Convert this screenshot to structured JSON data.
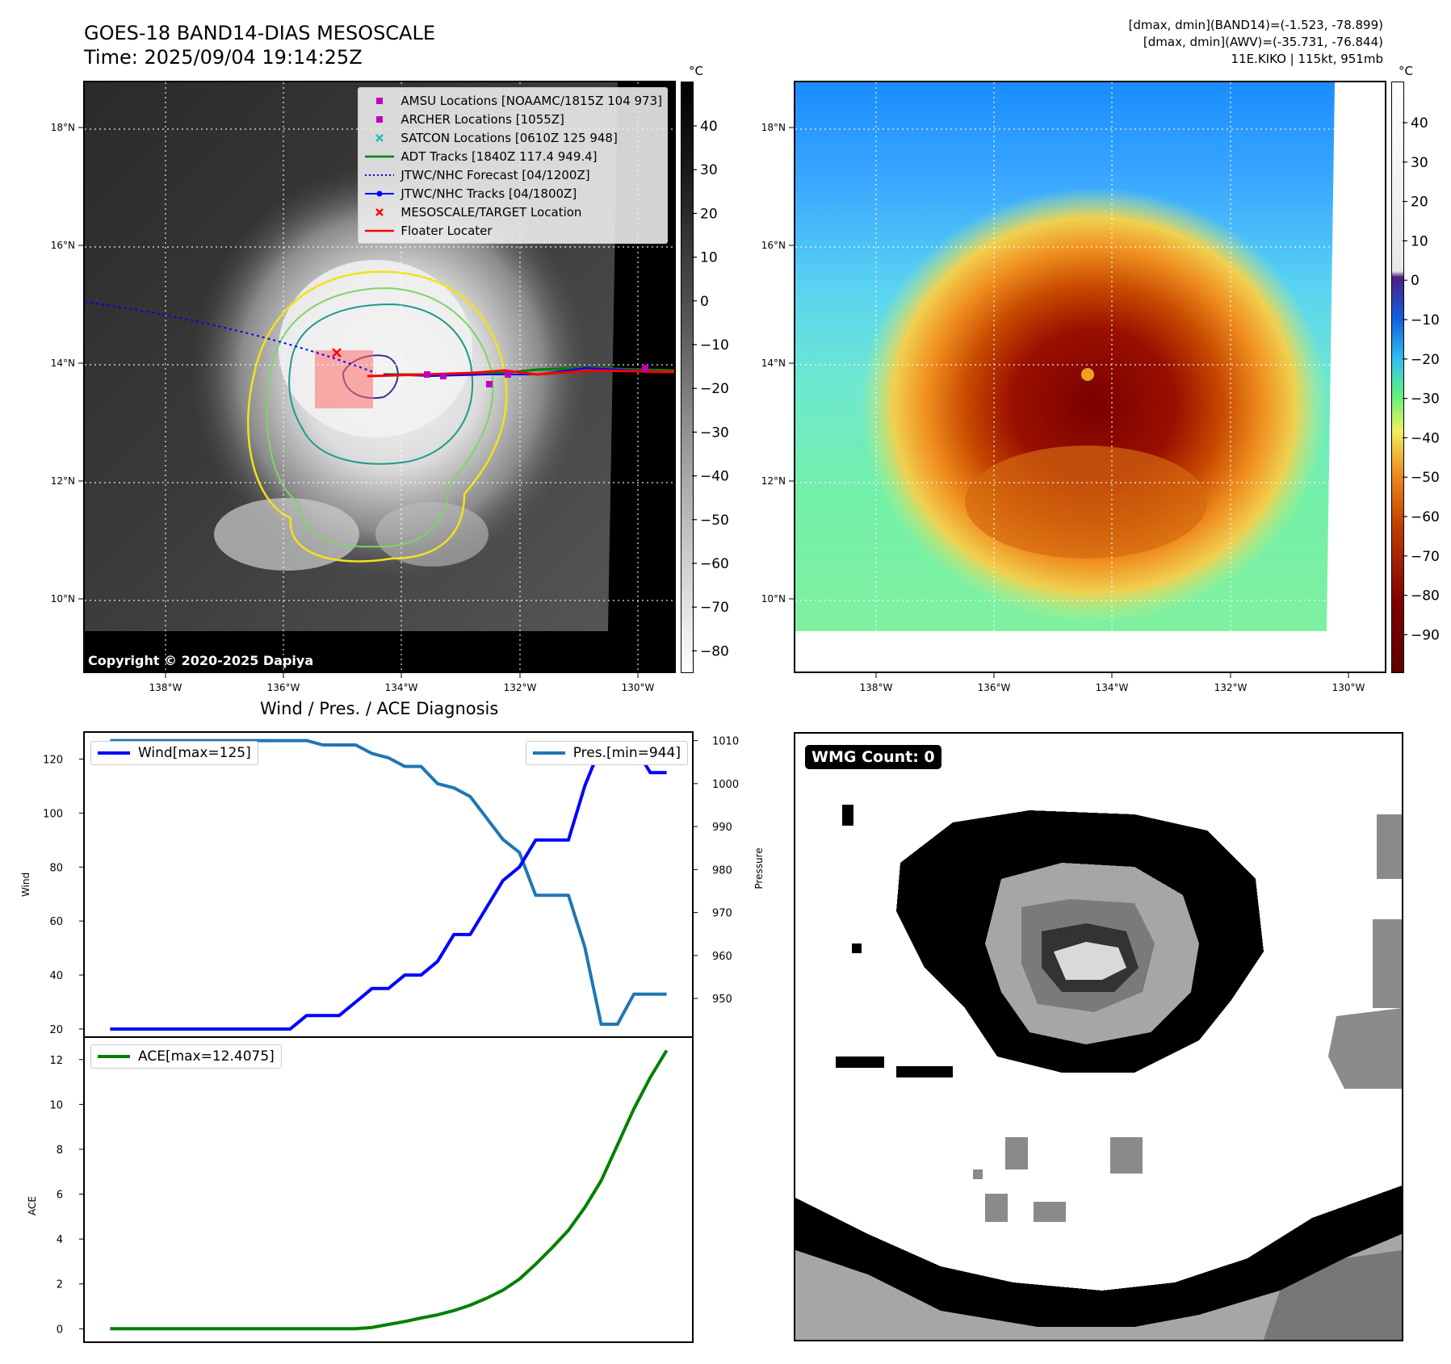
{
  "header": {
    "title_line1": "GOES-18 BAND14-DIAS MESOSCALE",
    "title_line2": "Time: 2025/09/04 19:14:25Z",
    "stats_line1": "[dmax, dmin](BAND14)=(-1.523, -78.899)",
    "stats_line2": "[dmax, dmin](AWV)=(-35.731, -76.844)",
    "stats_line3": "11E.KIKO | 115kt, 951mb"
  },
  "colors": {
    "wind": "#0000ff",
    "pressure": "#1f77b4",
    "ace": "#008000",
    "track_red": "#ff0000",
    "forecast_blue": "#0000ff",
    "contour_yellow": "#f2e21a",
    "contour_green": "#7ed36a",
    "contour_teal": "#1f9a8a",
    "contour_navy": "#3b2f8f"
  },
  "map": {
    "unit_label": "°C",
    "copyright": "Copyright © 2020-2025 Dapiya",
    "lat_labels": [
      "18°N",
      "16°N",
      "14°N",
      "12°N",
      "10°N"
    ],
    "lon_labels": [
      "138°W",
      "136°W",
      "134°W",
      "132°W",
      "130°W"
    ],
    "ir_colorbar_ticks": [
      "40",
      "30",
      "20",
      "10",
      "0",
      "−10",
      "−20",
      "−30",
      "−40",
      "−50",
      "−60",
      "−70",
      "−80"
    ],
    "awv_colorbar_ticks": [
      "40",
      "30",
      "20",
      "10",
      "0",
      "−10",
      "−20",
      "−30",
      "−40",
      "−50",
      "−60",
      "−70",
      "−80",
      "−90"
    ],
    "legend": [
      {
        "label": "AMSU Locations [NOAAMC/1815Z 104 973]",
        "symbol": "square",
        "color": "#c000c0"
      },
      {
        "label": "ARCHER Locations [1055Z]",
        "symbol": "square",
        "color": "#c000c0"
      },
      {
        "label": "SATCON Locations [0610Z 125 948]",
        "symbol": "x",
        "color": "#20c0c0"
      },
      {
        "label": "ADT Tracks [1840Z 117.4 949.4]",
        "symbol": "line",
        "color": "#008000"
      },
      {
        "label": "JTWC/NHC Forecast [04/1200Z]",
        "symbol": "dotted",
        "color": "#0000ff"
      },
      {
        "label": "JTWC/NHC Tracks [04/1800Z]",
        "symbol": "line-dot",
        "color": "#0000ff"
      },
      {
        "label": "MESOSCALE/TARGET Location",
        "symbol": "x",
        "color": "#ff0000"
      },
      {
        "label": "Floater Locater",
        "symbol": "line",
        "color": "#ff0000"
      }
    ]
  },
  "diagnosis": {
    "title": "Wind / Pres. / ACE Diagnosis",
    "wind_legend": "Wind[max=125]",
    "pres_legend": "Pres.[min=944]",
    "ace_legend": "ACE[max=12.4075]",
    "wind_axis_label": "Wind",
    "pres_axis_label": "Pressure",
    "ace_axis_label": "ACE"
  },
  "wmg": {
    "badge": "WMG Count: 0"
  },
  "chart_data": [
    {
      "type": "line",
      "title": "Wind / Pres. / ACE Diagnosis",
      "ylabel": "Wind",
      "ylim": [
        17,
        130
      ],
      "yticks": [
        20,
        40,
        60,
        80,
        100,
        120
      ],
      "x": [
        0,
        1,
        2,
        3,
        4,
        5,
        6,
        7,
        8,
        9,
        10,
        11,
        12,
        13,
        14,
        15,
        16,
        17,
        18,
        19,
        20,
        21,
        22,
        23,
        24,
        25,
        26,
        27,
        28,
        29,
        30,
        31,
        32,
        33,
        34
      ],
      "series": [
        {
          "name": "Wind[max=125]",
          "axis": "left",
          "values": [
            20,
            20,
            20,
            20,
            20,
            20,
            20,
            20,
            20,
            20,
            20,
            20,
            25,
            25,
            25,
            30,
            35,
            35,
            40,
            40,
            45,
            55,
            55,
            65,
            75,
            80,
            90,
            90,
            90,
            110,
            125,
            125,
            125,
            115,
            115
          ]
        },
        {
          "name": "Pres.[min=944]",
          "axis": "right",
          "values": [
            1010,
            1010,
            1010,
            1010,
            1010,
            1010,
            1010,
            1010,
            1010,
            1010,
            1010,
            1010,
            1010,
            1009,
            1009,
            1009,
            1007,
            1006,
            1004,
            1004,
            1000,
            999,
            997,
            992,
            987,
            984,
            974,
            974,
            974,
            962,
            944,
            944,
            951,
            951,
            951
          ]
        }
      ],
      "right_ylabel": "Pressure",
      "right_ylim": [
        941,
        1012
      ],
      "right_yticks": [
        950,
        960,
        970,
        980,
        990,
        1000,
        1010
      ]
    },
    {
      "type": "line",
      "ylabel": "ACE",
      "ylim": [
        -0.6,
        13.0
      ],
      "yticks": [
        0,
        2,
        4,
        6,
        8,
        10,
        12
      ],
      "x": [
        0,
        1,
        2,
        3,
        4,
        5,
        6,
        7,
        8,
        9,
        10,
        11,
        12,
        13,
        14,
        15,
        16,
        17,
        18,
        19,
        20,
        21,
        22,
        23,
        24,
        25,
        26,
        27,
        28,
        29,
        30,
        31,
        32,
        33,
        34
      ],
      "series": [
        {
          "name": "ACE[max=12.4075]",
          "values": [
            0,
            0,
            0,
            0,
            0,
            0,
            0,
            0,
            0,
            0,
            0,
            0,
            0,
            0,
            0,
            0,
            0.06,
            0.19,
            0.32,
            0.48,
            0.62,
            0.81,
            1.05,
            1.36,
            1.72,
            2.21,
            2.88,
            3.61,
            4.39,
            5.4,
            6.6,
            8.2,
            9.8,
            11.2,
            12.4075
          ]
        }
      ]
    }
  ]
}
